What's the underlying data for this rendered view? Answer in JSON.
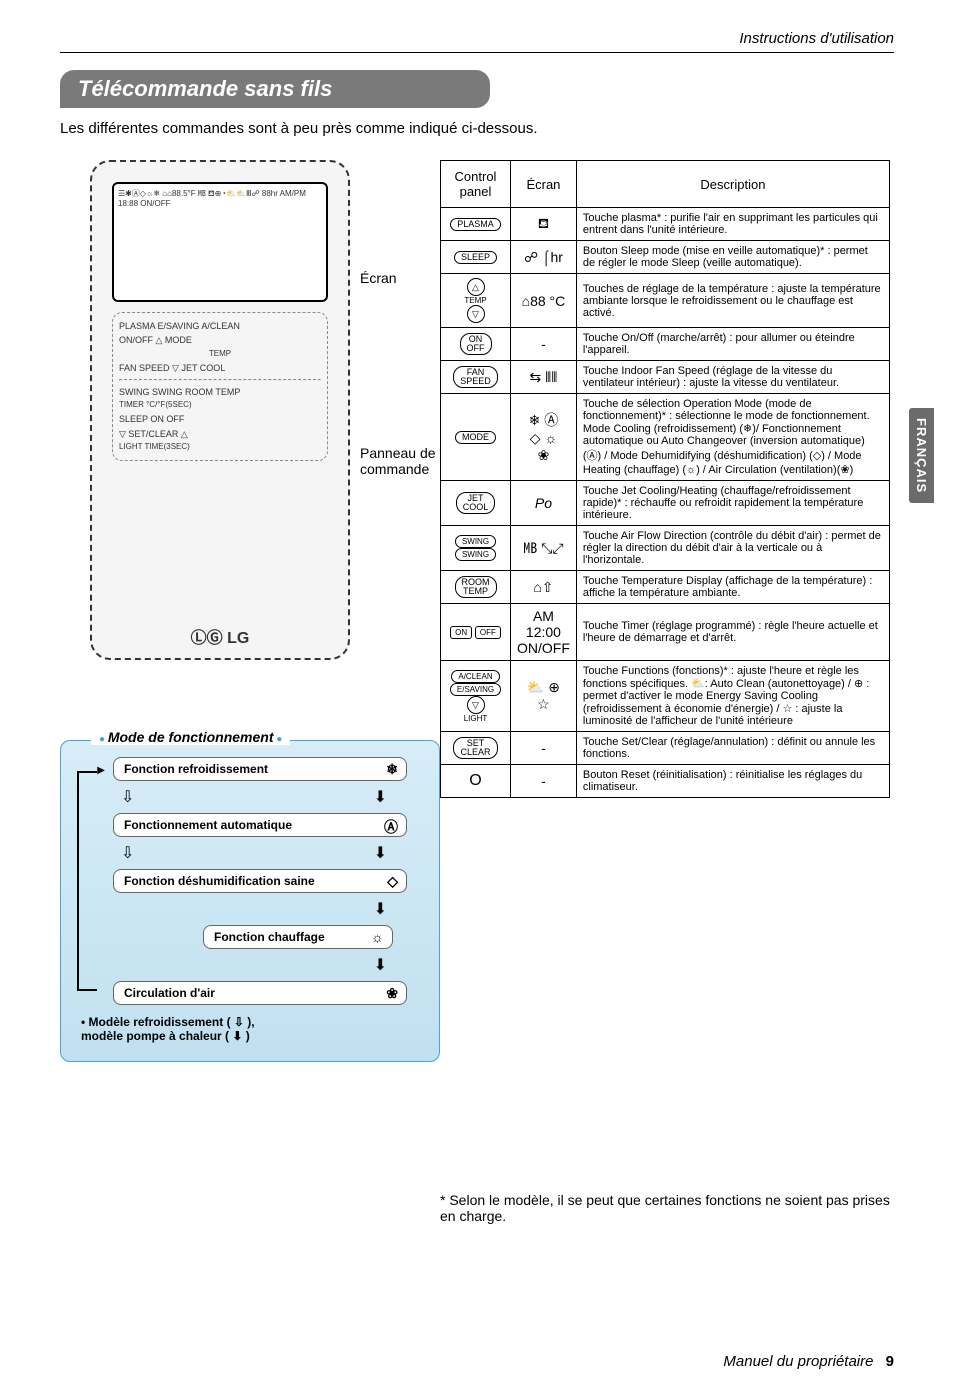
{
  "header": {
    "doc_title": "Instructions d'utilisation"
  },
  "title": "Télécommande sans fils",
  "intro": "Les différentes commandes sont à peu près comme indiqué ci-dessous.",
  "remote": {
    "label_ecran": "Écran",
    "label_panneau": "Panneau de\ncommande",
    "screen_glyphs": "☰✱Ⓐ◇☼❄  ⌂⌂88.5°F ㎆  ⛾⊕◔⛅⛅Ⅲ☍  88hr AM/PM 18:88 ON/OFF",
    "row1": "PLASMA  E/SAVING  A/CLEAN",
    "row2": "ON/OFF   △   MODE",
    "row_temp": "TEMP",
    "row3": "FAN SPEED   ▽   JET COOL",
    "row4": "SWING  SWING  ROOM TEMP",
    "row_timer": "TIMER   °C/°F(5SEC)",
    "row5": "SLEEP   ON   OFF",
    "row6": "▽   SET/CLEAR   △",
    "row_light": "LIGHT  TIME(3SEC)",
    "logo": "ⓁⒼ LG"
  },
  "mode": {
    "title": "Mode de fonctionnement",
    "rows": [
      {
        "label": "Fonction refroidissement",
        "icon": "❄"
      },
      {
        "label": "Fonctionnement automatique",
        "icon": "Ⓐ"
      },
      {
        "label": "Fonction déshumidification saine",
        "icon": "◇"
      },
      {
        "label": "Fonction chauffage",
        "icon": "☼"
      },
      {
        "label": "Circulation d'air",
        "icon": "❀"
      }
    ],
    "note": "• Modèle refroidissement ( ⇩ ),\n  modèle pompe à chaleur ( ⬇ )",
    "arrow_open": "⇩",
    "arrow_solid": "⬇"
  },
  "table": {
    "headers": {
      "panel": "Control\npanel",
      "ecran": "Écran",
      "desc": "Description"
    },
    "rows": [
      {
        "panel_type": "pill",
        "panel": "PLASMA",
        "ecran": "⛾",
        "desc": "Touche plasma* : purifie l'air en supprimant les particules qui entrent dans l'unité intérieure."
      },
      {
        "panel_type": "pill",
        "panel": "SLEEP",
        "ecran": "☍   ⌠hr",
        "desc": "Bouton Sleep mode (mise en veille automatique)* : permet de régler le mode Sleep (veille automatique)."
      },
      {
        "panel_type": "circles",
        "panel": "△\nTEMP\n▽",
        "ecran": "⌂88 °C",
        "desc": "Touches de réglage de la température : ajuste la température ambiante lorsque le refroidissement ou le chauffage est activé."
      },
      {
        "panel_type": "pill",
        "panel": "ON\nOFF",
        "ecran": "-",
        "desc": "Touche On/Off (marche/arrêt) : pour allumer ou éteindre l'appareil."
      },
      {
        "panel_type": "pill",
        "panel": "FAN\nSPEED",
        "ecran": "⇆   ⦀⦀",
        "desc": "Touche Indoor Fan Speed (réglage de la vitesse du ventilateur intérieur) : ajuste la vitesse du ventilateur."
      },
      {
        "panel_type": "pill",
        "panel": "MODE",
        "ecran": "❄  Ⓐ\n◇  ☼\n❀",
        "desc": "Touche de sélection Operation Mode (mode de fonctionnement)* : sélectionne le mode de fonctionnement. Mode Cooling (refroidissement) (❄)/ Fonctionnement automatique ou Auto Changeover (inversion automatique) (Ⓐ) / Mode Dehumidifying (déshumidification) (◇) / Mode Heating (chauffage) (☼) / Air Circulation (ventilation)(❀)"
      },
      {
        "panel_type": "pill",
        "panel": "JET\nCOOL",
        "ecran": "Pо",
        "desc": "Touche Jet Cooling/Heating (chauffage/refroidissement rapide)* : réchauffe ou refroidit rapidement la température intérieure."
      },
      {
        "panel_type": "twopill",
        "panel": "SWING  SWING",
        "ecran": "㎆   ⤡⤢",
        "desc": "Touche Air Flow Direction (contrôle du débit d'air) : permet de régler la direction du débit d'air à la verticale ou à l'horizontale."
      },
      {
        "panel_type": "pill",
        "panel": "ROOM\nTEMP",
        "ecran": "⌂⇧",
        "desc": "Touche Temperature Display (affichage de la température) : affiche la température ambiante."
      },
      {
        "panel_type": "tworect",
        "panel": "ON   OFF",
        "ecran": "AM 12:00 ON/OFF",
        "desc": "Touche Timer (réglage programmé) : règle l'heure actuelle et l'heure de démarrage et d'arrêt."
      },
      {
        "panel_type": "stack",
        "panel": "A/CLEAN\nE/SAVING\n▽\nLIGHT",
        "ecran": "⛅  ⊕\n☆",
        "desc": "Touche Functions (fonctions)* : ajuste l'heure et règle les fonctions spécifiques. ⛅: Auto Clean (autonettoyage) / ⊕ : permet d'activer le mode Energy Saving Cooling (refroidissement à économie d'énergie) / ☆ : ajuste la luminosité de l'afficheur de l'unité intérieure"
      },
      {
        "panel_type": "pill",
        "panel": "SET\nCLEAR",
        "ecran": "-",
        "desc": "Touche Set/Clear (réglage/annulation) : définit ou annule les fonctions."
      },
      {
        "panel_type": "text",
        "panel": "O",
        "ecran": "-",
        "desc": "Bouton Reset (réinitialisation) : réinitialise les réglages du climatiseur."
      }
    ]
  },
  "footnote": "* Selon le modèle, il se peut que certaines fonctions ne soient pas prises en charge.",
  "sidetab": "FRANÇAIS",
  "footer": {
    "label": "Manuel du propriétaire",
    "page": "9"
  },
  "colors": {
    "titlebar": "#7a7a7a",
    "modebox": "#c1e0f0",
    "sidetab": "#6b6b6b"
  }
}
